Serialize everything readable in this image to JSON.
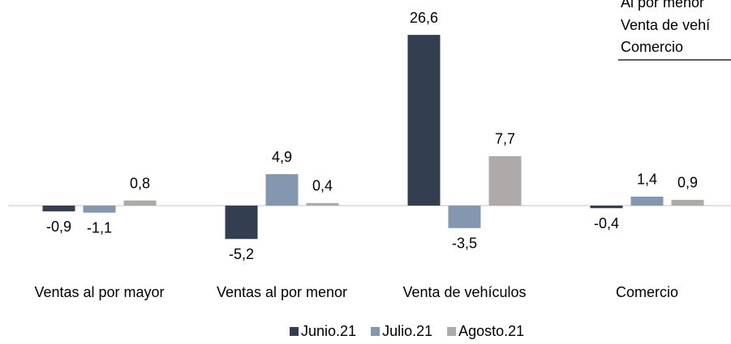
{
  "chart_data": {
    "type": "bar",
    "categories": [
      "Ventas al por mayor",
      "Ventas al por menor",
      "Venta de vehículos",
      "Comercio"
    ],
    "series": [
      {
        "name": "Junio.21",
        "color": "#333f50",
        "values": [
          -0.9,
          -5.2,
          26.6,
          -0.4
        ],
        "value_labels": [
          "-0,9",
          "-5,2",
          "26,6",
          "-0,4"
        ]
      },
      {
        "name": "Julio.21",
        "color": "#8497b0",
        "values": [
          -1.1,
          4.9,
          -3.5,
          1.4
        ],
        "value_labels": [
          "-1,1",
          "4,9",
          "-3,5",
          "1,4"
        ]
      },
      {
        "name": "Agosto.21",
        "color": "#aeaaaa",
        "values": [
          0.8,
          0.4,
          7.7,
          0.9
        ],
        "value_labels": [
          "0,8",
          "0,4",
          "7,7",
          "0,9"
        ]
      }
    ],
    "ylim": [
      -6,
      28
    ],
    "legend": "bottom"
  },
  "overlay_table": {
    "labels": [
      "Al por menor",
      "Venta de vehí",
      "Comercio"
    ]
  }
}
